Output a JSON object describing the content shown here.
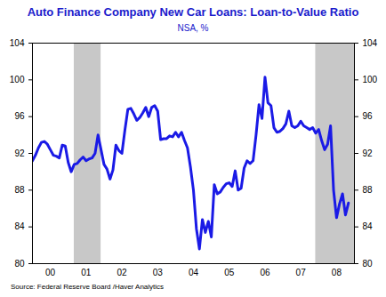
{
  "chart_data": {
    "type": "line",
    "title": "Auto Finance Company New Car Loans: Loan-to-Value Ratio",
    "subtitle": "NSA, %",
    "source": "Source:  Federal Reserve Board /Haver Analytics",
    "color": "#1a1ae6",
    "x": [
      2000.0,
      2000.083,
      2000.167,
      2000.25,
      2000.333,
      2000.417,
      2000.5,
      2000.583,
      2000.667,
      2000.75,
      2000.833,
      2000.917,
      2001.0,
      2001.083,
      2001.167,
      2001.25,
      2001.333,
      2001.417,
      2001.5,
      2001.583,
      2001.667,
      2001.75,
      2001.833,
      2001.917,
      2002.0,
      2002.083,
      2002.167,
      2002.25,
      2002.333,
      2002.417,
      2002.5,
      2002.583,
      2002.667,
      2002.75,
      2002.833,
      2002.917,
      2003.0,
      2003.083,
      2003.167,
      2003.25,
      2003.333,
      2003.417,
      2003.5,
      2003.583,
      2003.667,
      2003.75,
      2003.833,
      2003.917,
      2004.0,
      2004.083,
      2004.167,
      2004.25,
      2004.333,
      2004.417,
      2004.5,
      2004.583,
      2004.667,
      2004.75,
      2004.833,
      2004.917,
      2005.0,
      2005.083,
      2005.167,
      2005.25,
      2005.333,
      2005.417,
      2005.5,
      2005.583,
      2005.667,
      2005.75,
      2005.833,
      2005.917,
      2006.0,
      2006.083,
      2006.167,
      2006.25,
      2006.333,
      2006.417,
      2006.5,
      2006.583,
      2006.667,
      2006.75,
      2006.833,
      2006.917,
      2007.0,
      2007.083,
      2007.167,
      2007.25,
      2007.333,
      2007.417,
      2007.5,
      2007.583,
      2007.667,
      2007.75,
      2007.833,
      2007.917,
      2008.0,
      2008.083,
      2008.167,
      2008.25,
      2008.333,
      2008.417,
      2008.5,
      2008.583,
      2008.667,
      2008.75,
      2008.833
    ],
    "values": [
      91.2,
      91.8,
      92.6,
      93.2,
      93.3,
      93.0,
      92.4,
      91.8,
      91.7,
      91.5,
      92.9,
      92.8,
      91.0,
      90.0,
      90.8,
      90.9,
      91.3,
      91.6,
      91.2,
      91.4,
      91.5,
      92.0,
      94.0,
      92.4,
      90.8,
      90.3,
      89.2,
      90.2,
      92.9,
      92.3,
      92.0,
      94.5,
      96.8,
      96.9,
      96.3,
      95.6,
      95.9,
      96.4,
      97.0,
      96.0,
      97.0,
      97.2,
      96.6,
      93.5,
      93.6,
      93.6,
      93.9,
      93.8,
      94.3,
      93.8,
      94.3,
      93.4,
      92.6,
      90.5,
      88.0,
      83.8,
      81.6,
      84.8,
      83.4,
      84.6,
      82.9,
      88.6,
      87.6,
      87.8,
      88.3,
      88.7,
      88.8,
      88.4,
      90.1,
      88.0,
      88.2,
      90.4,
      91.2,
      90.9,
      91.2,
      94.0,
      97.3,
      95.8,
      100.3,
      97.5,
      97.2,
      94.8,
      94.3,
      94.4,
      94.7,
      95.2,
      96.6,
      95.0,
      94.8,
      95.0,
      95.5,
      95.0,
      94.8,
      94.6,
      94.8,
      94.2,
      94.6,
      93.4,
      92.4,
      93.0,
      95.0,
      88.0,
      85.0,
      86.5,
      87.6,
      85.3,
      86.6
    ],
    "xlim": [
      2000,
      2009
    ],
    "xticks": [
      {
        "value": 2000.5,
        "label": "00"
      },
      {
        "value": 2001.5,
        "label": "01"
      },
      {
        "value": 2002.5,
        "label": "02"
      },
      {
        "value": 2003.5,
        "label": "03"
      },
      {
        "value": 2004.5,
        "label": "04"
      },
      {
        "value": 2005.5,
        "label": "05"
      },
      {
        "value": 2006.5,
        "label": "06"
      },
      {
        "value": 2007.5,
        "label": "07"
      },
      {
        "value": 2008.5,
        "label": "08"
      }
    ],
    "ylim": [
      80,
      104
    ],
    "yticks": [
      80,
      84,
      88,
      92,
      96,
      100,
      104
    ],
    "shaded_periods": [
      {
        "start": 2001.167,
        "end": 2001.917
      },
      {
        "start": 2007.917,
        "end": 2009
      }
    ],
    "grid": false
  }
}
